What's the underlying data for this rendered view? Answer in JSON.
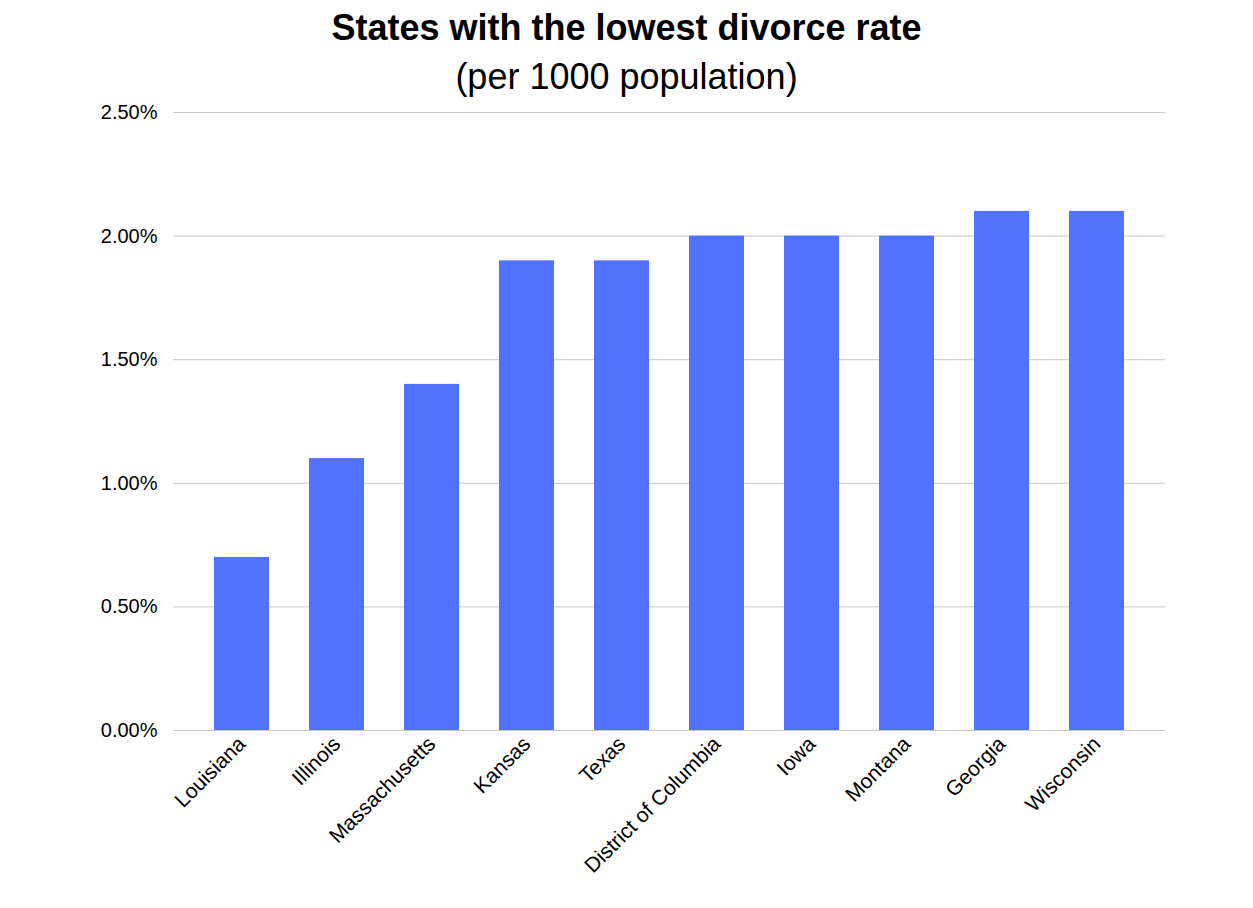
{
  "chart_data": {
    "type": "bar",
    "title": "States with the lowest divorce rate",
    "subtitle": "(per 1000 population)",
    "categories": [
      "Louisiana",
      "Illinois",
      "Massachusetts",
      "Kansas",
      "Texas",
      "District of Columbia",
      "Iowa",
      "Montana",
      "Georgia",
      "Wisconsin"
    ],
    "values": [
      0.7,
      1.1,
      1.4,
      1.9,
      1.9,
      2.0,
      2.0,
      2.0,
      2.1,
      2.1
    ],
    "color": "#5271ff",
    "ylim": [
      0,
      2.5
    ],
    "yticks": [
      {
        "value": 0,
        "label": "0.00%"
      },
      {
        "value": 0.5,
        "label": "0.50%"
      },
      {
        "value": 1,
        "label": "1.00%"
      },
      {
        "value": 1.5,
        "label": "1.50%"
      },
      {
        "value": 2,
        "label": "2.00%"
      },
      {
        "value": 2.5,
        "label": "2.50%"
      }
    ],
    "grid": true
  }
}
